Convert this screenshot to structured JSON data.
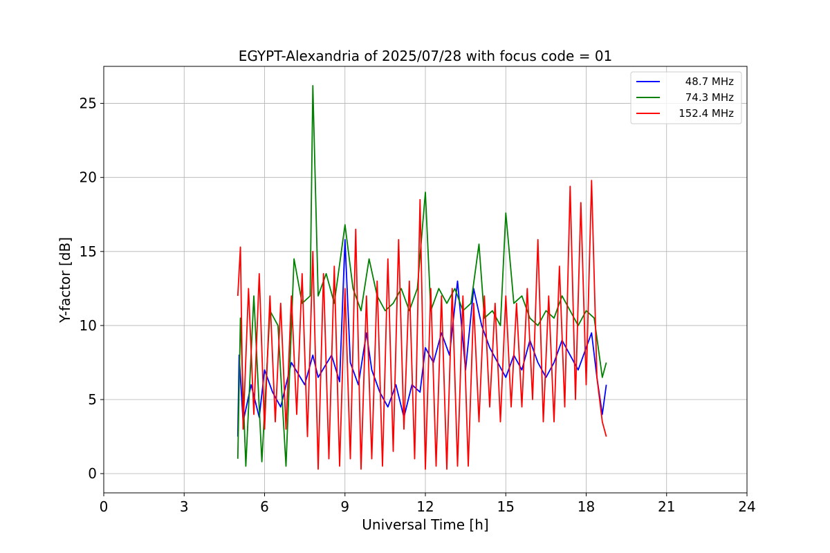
{
  "chart_data": {
    "type": "line",
    "title": "EGYPT-Alexandria of 2025/07/28 with focus code = 01",
    "xlabel": "Universal Time [h]",
    "ylabel": "Y-factor [dB]",
    "xlim": [
      0,
      24
    ],
    "ylim": [
      -1.3,
      27.5
    ],
    "xticks": [
      0,
      3,
      6,
      9,
      12,
      15,
      18,
      21,
      24
    ],
    "xtick_labels": [
      "0",
      "3",
      "6",
      "9",
      "12",
      "15",
      "18",
      "21",
      "24"
    ],
    "yticks": [
      0,
      5,
      10,
      15,
      20,
      25
    ],
    "ytick_labels": [
      "0",
      "5",
      "10",
      "15",
      "20",
      "25"
    ],
    "grid": true,
    "legend_position": "top-right",
    "series": [
      {
        "name": "48.7 MHz",
        "color": "#0000ff",
        "x": [
          5.0,
          5.05,
          5.2,
          5.5,
          5.8,
          6.0,
          6.3,
          6.6,
          7.0,
          7.5,
          7.8,
          8.0,
          8.5,
          8.8,
          9.0,
          9.2,
          9.5,
          9.8,
          10.0,
          10.3,
          10.6,
          10.9,
          11.2,
          11.5,
          11.8,
          12.0,
          12.3,
          12.6,
          12.9,
          13.2,
          13.5,
          13.8,
          14.1,
          14.4,
          14.7,
          15.0,
          15.3,
          15.6,
          15.9,
          16.2,
          16.5,
          16.8,
          17.1,
          17.4,
          17.7,
          18.0,
          18.2,
          18.4,
          18.6,
          18.75
        ],
        "y": [
          2.5,
          8.0,
          3.5,
          6.0,
          3.8,
          7.0,
          5.5,
          4.5,
          7.5,
          6.0,
          8.0,
          6.5,
          8.0,
          6.2,
          15.8,
          7.5,
          6.0,
          9.5,
          7.0,
          5.5,
          4.5,
          6.0,
          3.8,
          6.0,
          5.5,
          8.5,
          7.5,
          9.5,
          8.0,
          13.0,
          7.0,
          12.5,
          10.0,
          8.5,
          7.5,
          6.5,
          8.0,
          7.0,
          9.0,
          7.5,
          6.5,
          7.5,
          9.0,
          8.0,
          7.0,
          8.5,
          9.5,
          6.5,
          4.0,
          6.0
        ]
      },
      {
        "name": "74.3 MHz",
        "color": "#008000",
        "x": [
          5.0,
          5.1,
          5.3,
          5.6,
          5.9,
          6.2,
          6.5,
          6.8,
          7.1,
          7.4,
          7.7,
          7.8,
          8.0,
          8.3,
          8.6,
          9.0,
          9.3,
          9.6,
          9.9,
          10.2,
          10.5,
          10.8,
          11.1,
          11.4,
          11.7,
          12.0,
          12.2,
          12.5,
          12.8,
          13.1,
          13.4,
          13.7,
          14.0,
          14.2,
          14.5,
          14.8,
          15.0,
          15.3,
          15.6,
          15.9,
          16.2,
          16.5,
          16.8,
          17.1,
          17.4,
          17.7,
          18.0,
          18.3,
          18.6,
          18.75
        ],
        "y": [
          1.0,
          10.5,
          0.5,
          12.0,
          0.8,
          11.0,
          10.0,
          0.5,
          14.5,
          11.5,
          12.0,
          26.2,
          12.0,
          13.5,
          11.5,
          16.8,
          12.5,
          11.0,
          14.5,
          12.0,
          11.0,
          11.5,
          12.5,
          11.0,
          12.5,
          19.0,
          11.0,
          12.5,
          11.5,
          12.5,
          11.0,
          11.5,
          15.5,
          10.5,
          11.0,
          10.0,
          17.6,
          11.5,
          12.0,
          10.5,
          10.0,
          11.0,
          10.5,
          12.0,
          11.0,
          10.0,
          11.0,
          10.5,
          6.5,
          7.5
        ]
      },
      {
        "name": "152.4 MHz",
        "color": "#ff0000",
        "x": [
          5.0,
          5.1,
          5.2,
          5.4,
          5.6,
          5.8,
          6.0,
          6.2,
          6.4,
          6.6,
          6.8,
          7.0,
          7.2,
          7.4,
          7.6,
          7.8,
          8.0,
          8.2,
          8.4,
          8.6,
          8.8,
          9.0,
          9.2,
          9.4,
          9.6,
          9.8,
          10.0,
          10.2,
          10.4,
          10.6,
          10.8,
          11.0,
          11.2,
          11.4,
          11.6,
          11.8,
          12.0,
          12.2,
          12.4,
          12.6,
          12.8,
          13.0,
          13.2,
          13.4,
          13.6,
          13.8,
          14.0,
          14.2,
          14.4,
          14.6,
          14.8,
          15.0,
          15.2,
          15.4,
          15.6,
          15.8,
          16.0,
          16.2,
          16.4,
          16.6,
          16.8,
          17.0,
          17.2,
          17.4,
          17.6,
          17.8,
          18.0,
          18.2,
          18.4,
          18.6,
          18.75
        ],
        "y": [
          12.0,
          15.3,
          3.0,
          12.5,
          4.0,
          13.5,
          3.0,
          12.0,
          3.5,
          11.5,
          3.0,
          12.0,
          4.0,
          13.5,
          2.5,
          15.0,
          0.3,
          13.5,
          1.0,
          14.0,
          0.5,
          12.5,
          1.0,
          16.5,
          0.3,
          12.0,
          1.0,
          13.0,
          0.5,
          14.5,
          1.5,
          15.8,
          3.0,
          13.0,
          1.0,
          18.5,
          0.3,
          12.5,
          0.5,
          12.0,
          0.3,
          12.5,
          0.5,
          12.0,
          0.5,
          11.5,
          3.5,
          12.0,
          4.5,
          11.5,
          3.5,
          12.0,
          4.5,
          11.5,
          4.5,
          12.5,
          5.0,
          15.8,
          3.5,
          12.0,
          3.5,
          14.0,
          4.5,
          19.4,
          5.0,
          18.3,
          6.0,
          19.8,
          6.5,
          3.5,
          2.5
        ]
      }
    ]
  }
}
